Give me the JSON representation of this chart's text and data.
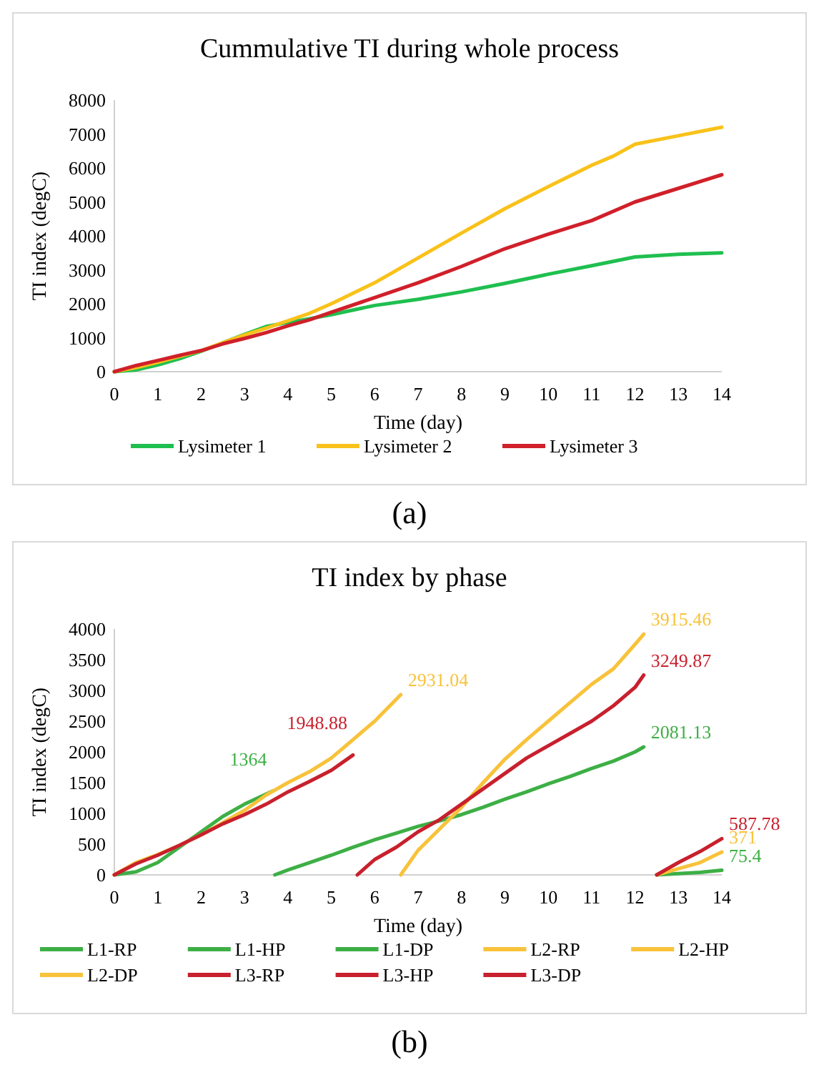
{
  "chart_data": [
    {
      "type": "line",
      "title": "Cummulative TI during whole process",
      "xlabel": "Time (day)",
      "ylabel": "TI index (degC)",
      "xlim": [
        0,
        14
      ],
      "xticks": [
        0,
        1,
        2,
        3,
        4,
        5,
        6,
        7,
        8,
        9,
        10,
        11,
        12,
        13,
        14
      ],
      "ylim": [
        0,
        8000
      ],
      "yticks": [
        0,
        1000,
        2000,
        3000,
        4000,
        5000,
        6000,
        7000,
        8000
      ],
      "grid": false,
      "legend": "bottom",
      "marker": "none",
      "line_style": "solid",
      "annotations": [
        "(a)"
      ],
      "series": [
        {
          "name": "Lysimeter 1",
          "color": "#1fbf4f",
          "x": [
            0,
            0.5,
            1,
            1.5,
            2,
            2.5,
            3,
            3.5,
            4,
            4.5,
            5,
            6,
            7,
            8,
            9,
            10,
            11,
            12,
            13,
            14
          ],
          "values": [
            0,
            50,
            200,
            380,
            600,
            850,
            1100,
            1330,
            1450,
            1560,
            1680,
            1950,
            2130,
            2350,
            2600,
            2870,
            3120,
            3380,
            3460,
            3500
          ]
        },
        {
          "name": "Lysimeter 2",
          "color": "#f9c21a",
          "x": [
            0,
            0.5,
            1,
            1.5,
            2,
            2.5,
            3,
            3.5,
            4,
            4.5,
            5,
            6,
            7,
            8,
            9,
            10,
            11,
            11.5,
            12,
            13,
            14
          ],
          "values": [
            0,
            120,
            280,
            450,
            620,
            850,
            1080,
            1280,
            1500,
            1720,
            2000,
            2620,
            3350,
            4080,
            4800,
            5450,
            6080,
            6350,
            6700,
            6950,
            7200
          ]
        },
        {
          "name": "Lysimeter 3",
          "color": "#d0202a",
          "x": [
            0,
            0.5,
            1,
            1.5,
            2,
            2.5,
            3,
            3.5,
            4,
            4.5,
            5,
            6,
            7,
            8,
            9,
            10,
            11,
            12,
            13,
            14
          ],
          "values": [
            0,
            180,
            330,
            480,
            620,
            820,
            980,
            1150,
            1350,
            1530,
            1750,
            2180,
            2620,
            3100,
            3620,
            4050,
            4450,
            5000,
            5400,
            5800
          ]
        }
      ]
    },
    {
      "type": "line",
      "title": "TI index by phase",
      "xlabel": "Time (day)",
      "ylabel": "TI index (degC)",
      "xlim": [
        0,
        14
      ],
      "xticks": [
        0,
        1,
        2,
        3,
        4,
        5,
        6,
        7,
        8,
        9,
        10,
        11,
        12,
        13,
        14
      ],
      "ylim": [
        0,
        4000
      ],
      "yticks": [
        0,
        500,
        1000,
        1500,
        2000,
        2500,
        3000,
        3500,
        4000
      ],
      "grid": false,
      "legend": "bottom",
      "marker": "none",
      "line_style": "solid",
      "annotations": [
        "(b)"
      ],
      "series": [
        {
          "name": "L1-RP",
          "color": "#3daf45",
          "x": [
            0,
            0.5,
            1,
            1.5,
            2,
            2.5,
            3,
            3.65
          ],
          "values": [
            0,
            50,
            200,
            450,
            700,
            950,
            1150,
            1364
          ],
          "value_labels": [
            null,
            null,
            null,
            null,
            null,
            null,
            null,
            "1364"
          ]
        },
        {
          "name": "L1-HP",
          "color": "#3daf45",
          "x": [
            3.7,
            4,
            4.5,
            5,
            5.5,
            6,
            6.5,
            7,
            7.5,
            8,
            8.5,
            9,
            9.5,
            10,
            10.5,
            11,
            11.5,
            12,
            12.2
          ],
          "values": [
            0,
            80,
            200,
            320,
            450,
            570,
            680,
            790,
            880,
            980,
            1100,
            1230,
            1350,
            1480,
            1600,
            1730,
            1850,
            2000,
            2081.13
          ],
          "value_labels": [
            null,
            null,
            null,
            null,
            null,
            null,
            null,
            null,
            null,
            null,
            null,
            null,
            null,
            null,
            null,
            null,
            null,
            null,
            "2081.13"
          ]
        },
        {
          "name": "L1-DP",
          "color": "#3daf45",
          "x": [
            12.5,
            13,
            13.5,
            14
          ],
          "values": [
            0,
            20,
            40,
            75.4
          ],
          "value_labels": [
            null,
            null,
            null,
            "75.4"
          ]
        },
        {
          "name": "L2-RP",
          "color": "#f8c23a",
          "x": [
            0,
            0.5,
            1,
            1.5,
            2,
            2.5,
            3,
            3.5,
            4,
            4.5,
            5,
            5.5,
            6,
            6.6
          ],
          "values": [
            0,
            200,
            330,
            480,
            650,
            850,
            1050,
            1300,
            1500,
            1680,
            1900,
            2200,
            2500,
            2931.04
          ],
          "value_labels": [
            null,
            null,
            null,
            null,
            null,
            null,
            null,
            null,
            null,
            null,
            null,
            null,
            null,
            "2931.04"
          ]
        },
        {
          "name": "L2-HP",
          "color": "#f8c23a",
          "x": [
            6.6,
            7,
            7.5,
            8,
            8.5,
            9,
            9.5,
            10,
            10.5,
            11,
            11.5,
            12,
            12.2
          ],
          "values": [
            0,
            400,
            750,
            1100,
            1500,
            1880,
            2200,
            2500,
            2800,
            3100,
            3350,
            3750,
            3915.46
          ],
          "value_labels": [
            null,
            null,
            null,
            null,
            null,
            null,
            null,
            null,
            null,
            null,
            null,
            null,
            "3915.46"
          ]
        },
        {
          "name": "L2-DP",
          "color": "#f8c23a",
          "x": [
            12.5,
            13,
            13.5,
            14
          ],
          "values": [
            0,
            100,
            200,
            371
          ],
          "value_labels": [
            null,
            null,
            null,
            "371"
          ]
        },
        {
          "name": "L3-RP",
          "color": "#c8202d",
          "x": [
            0,
            0.5,
            1,
            1.5,
            2,
            2.5,
            3,
            3.5,
            4,
            4.5,
            5,
            5.5
          ],
          "values": [
            0,
            180,
            320,
            480,
            650,
            830,
            980,
            1150,
            1350,
            1520,
            1700,
            1948.88
          ],
          "value_labels": [
            null,
            null,
            null,
            null,
            null,
            null,
            null,
            null,
            null,
            null,
            null,
            "1948.88"
          ]
        },
        {
          "name": "L3-HP",
          "color": "#c8202d",
          "x": [
            5.6,
            6,
            6.5,
            7,
            7.5,
            8,
            8.5,
            9,
            9.5,
            10,
            10.5,
            11,
            11.5,
            12,
            12.2
          ],
          "values": [
            0,
            250,
            450,
            700,
            900,
            1150,
            1400,
            1650,
            1900,
            2100,
            2300,
            2500,
            2750,
            3050,
            3249.87
          ],
          "value_labels": [
            null,
            null,
            null,
            null,
            null,
            null,
            null,
            null,
            null,
            null,
            null,
            null,
            null,
            null,
            "3249.87"
          ]
        },
        {
          "name": "L3-DP",
          "color": "#c8202d",
          "x": [
            12.5,
            13,
            13.5,
            14
          ],
          "values": [
            0,
            200,
            380,
            587.78
          ],
          "value_labels": [
            null,
            null,
            null,
            "587.78"
          ]
        }
      ]
    }
  ]
}
